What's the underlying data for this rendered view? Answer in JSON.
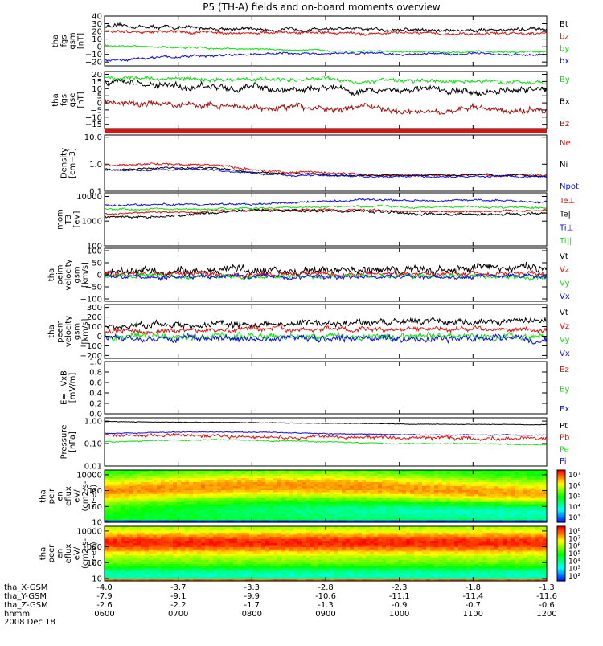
{
  "title": "P5 (TH-A) fields and on-board moments overview",
  "date_label": "2008 Dec 18",
  "colors": {
    "black": "#000000",
    "red": "#e01010",
    "green": "#10e010",
    "blue": "#1010e0",
    "darkred": "#a01010"
  },
  "chart_data": {
    "type": "line",
    "x_ticks": [
      {
        "hhmm": "0600",
        "x_gsm": "-4.0",
        "y_gsm": "-7.9",
        "z_gsm": "-2.6"
      },
      {
        "hhmm": "0700",
        "x_gsm": "-3.7",
        "y_gsm": "-9.1",
        "z_gsm": "-2.2"
      },
      {
        "hhmm": "0800",
        "x_gsm": "-3.3",
        "y_gsm": "-9.9",
        "z_gsm": "-1.7"
      },
      {
        "hhmm": "0900",
        "x_gsm": "-2.8",
        "y_gsm": "-10.6",
        "z_gsm": "-1.3"
      },
      {
        "hhmm": "1000",
        "x_gsm": "-2.3",
        "y_gsm": "-11.1",
        "z_gsm": "-0.9"
      },
      {
        "hhmm": "1100",
        "x_gsm": "-1.8",
        "y_gsm": "-11.4",
        "z_gsm": "-0.7"
      },
      {
        "hhmm": "1200",
        "x_gsm": "-1.3",
        "y_gsm": "-11.6",
        "z_gsm": "-0.6"
      }
    ],
    "row_labels": [
      "tha_X-GSM",
      "tha_Y-GSM",
      "tha_Z-GSM",
      "hhmm"
    ],
    "panels": [
      {
        "id": "fgs-gsm",
        "ylabel": [
          "tha",
          "fgs",
          "gsm",
          "[nT]"
        ],
        "ylim": [
          -25,
          40
        ],
        "scale": "linear",
        "ticks": [
          40,
          30,
          20,
          10,
          0,
          -10,
          -20
        ],
        "tick_labels": [
          "40",
          "30",
          "20",
          "10",
          "0",
          "−10",
          "−20"
        ],
        "series": [
          {
            "name": "Bt",
            "color": "#000000",
            "base": [
              27,
              26,
              25,
              24,
              23,
              22,
              24,
              22,
              23,
              21,
              22,
              23,
              22
            ],
            "noise": 3
          },
          {
            "name": "bz",
            "color": "#e01010",
            "base": [
              20,
              19,
              19,
              19,
              18,
              18,
              19,
              17,
              18,
              17,
              17,
              18,
              18
            ],
            "noise": 2.5
          },
          {
            "name": "by",
            "color": "#10e010",
            "base": [
              2,
              0,
              -1,
              -2,
              -3,
              -4,
              -5,
              -6,
              -7,
              -7,
              -6,
              -7,
              -7
            ],
            "noise": 1.5
          },
          {
            "name": "bx",
            "color": "#1010e0",
            "base": [
              -18,
              -15,
              -13,
              -12,
              -10,
              -9,
              -10,
              -8,
              -10,
              -9,
              -9,
              -10,
              -11
            ],
            "noise": 2
          }
        ]
      },
      {
        "id": "fgs-gse",
        "ylabel": [
          "tha",
          "fgs",
          "gse",
          "[nT]"
        ],
        "ylim": [
          -18,
          22
        ],
        "scale": "linear",
        "ticks": [
          20,
          15,
          10,
          5,
          0,
          -5,
          -10,
          -15
        ],
        "tick_labels": [
          "20",
          "15",
          "10",
          "5",
          "0",
          "−5",
          "−10",
          "−15"
        ],
        "series": [
          {
            "name": "By",
            "color": "#10e010",
            "base": [
              18,
              17,
              17,
              16,
              17,
              16,
              17,
              15,
              16,
              15,
              15,
              15,
              14
            ],
            "noise": 2
          },
          {
            "name": "Bx",
            "color": "#000000",
            "base": [
              15,
              13,
              12,
              11,
              10,
              9,
              11,
              8,
              10,
              9,
              8,
              9,
              9
            ],
            "noise": 3
          },
          {
            "name": "Bz",
            "color": "#a01010",
            "base": [
              0,
              0,
              -1,
              -2,
              -4,
              -3,
              -4,
              -3,
              -5,
              -5,
              -4,
              -5,
              -6
            ],
            "noise": 3
          }
        ]
      },
      {
        "id": "density",
        "ylabel": [
          "Density",
          "[cm−3]"
        ],
        "ylim": [
          0.1,
          12
        ],
        "scale": "log",
        "ticks": [
          10.0,
          1.0,
          0.1
        ],
        "tick_labels": [
          "10.0",
          "1.0",
          "0.1"
        ],
        "series": [
          {
            "name": "Ne",
            "color": "#e01010",
            "base": [
              0.9,
              1.0,
              1.0,
              0.9,
              0.6,
              0.5,
              0.5,
              0.4,
              0.4,
              0.4,
              0.4,
              0.4,
              0.4
            ],
            "noise": 0.06
          },
          {
            "name": "Ni",
            "color": "#000000",
            "base": [
              0.65,
              0.7,
              0.75,
              0.7,
              0.5,
              0.45,
              0.4,
              0.38,
              0.38,
              0.4,
              0.4,
              0.38,
              0.38
            ],
            "noise": 0.05
          },
          {
            "name": "Npot",
            "color": "#1010e0",
            "base": [
              0.6,
              0.6,
              0.65,
              0.6,
              0.45,
              0.4,
              0.38,
              0.35,
              0.35,
              0.35,
              0.36,
              0.35,
              0.35
            ],
            "noise": 0.05
          }
        ]
      },
      {
        "id": "mom-temp",
        "ylabel": [
          "mom",
          "T3",
          "[eV]"
        ],
        "ylim": [
          100,
          14000
        ],
        "scale": "log",
        "ticks": [
          10000,
          1000,
          100
        ],
        "tick_labels": [
          "10000",
          "1000",
          "100"
        ],
        "series": [
          {
            "name": "Te⊥",
            "color": "#e01010",
            "base": [
              2000,
              2200,
              2400,
              2600,
              2800,
              2900,
              2900,
              2800,
              2600,
              2500,
              2500,
              2600,
              2700
            ],
            "noise": 0.06
          },
          {
            "name": "Te||",
            "color": "#000000",
            "base": [
              1500,
              1400,
              1700,
              2300,
              2700,
              2800,
              2700,
              2400,
              2100,
              1900,
              1900,
              2000,
              2000
            ],
            "noise": 0.08
          },
          {
            "name": "Ti⊥",
            "color": "#1010e0",
            "base": [
              4500,
              4600,
              4700,
              4800,
              5000,
              5500,
              6500,
              7500,
              7000,
              6500,
              7000,
              6500,
              6000
            ],
            "noise": 0.06
          },
          {
            "name": "Ti||",
            "color": "#10e010",
            "base": [
              3000,
              3100,
              3200,
              3000,
              3200,
              3500,
              3800,
              4000,
              3800,
              3600,
              3800,
              3700,
              3600
            ],
            "noise": 0.06
          }
        ]
      },
      {
        "id": "peim-velocity",
        "ylabel": [
          "tha",
          "peim",
          "velocity",
          "gsm",
          "[km/s]"
        ],
        "ylim": [
          -110,
          110
        ],
        "scale": "linear",
        "ticks": [
          100,
          50,
          0,
          -50,
          -100
        ],
        "tick_labels": [
          "100",
          "50",
          "0",
          "−50",
          "−100"
        ],
        "series": [
          {
            "name": "Vt",
            "color": "#000000",
            "base": [
              10,
              12,
              14,
              16,
              18,
              20,
              22,
              24,
              22,
              22,
              25,
              25,
              24
            ],
            "noise": 22
          },
          {
            "name": "Vz",
            "color": "#e01010",
            "base": [
              5,
              5,
              4,
              4,
              3,
              4,
              5,
              4,
              3,
              3,
              4,
              4,
              4
            ],
            "noise": 12
          },
          {
            "name": "Vy",
            "color": "#10e010",
            "base": [
              -3,
              -4,
              -6,
              -8,
              -7,
              -8,
              -9,
              -8,
              -8,
              -7,
              -8,
              -8,
              -8
            ],
            "noise": 12
          },
          {
            "name": "Vx",
            "color": "#1010e0",
            "base": [
              -5,
              -6,
              -8,
              -7,
              -8,
              -9,
              -8,
              -8,
              -9,
              -8,
              -8,
              -7,
              -7
            ],
            "noise": 12
          }
        ]
      },
      {
        "id": "peem-velocity",
        "ylabel": [
          "tha",
          "peem",
          "velocity",
          "gsm",
          "[km/s]"
        ],
        "ylim": [
          -230,
          330
        ],
        "scale": "linear",
        "ticks": [
          300,
          200,
          100,
          0,
          -100,
          -200
        ],
        "tick_labels": [
          "300",
          "200",
          "100",
          "0",
          "−100",
          "−200"
        ],
        "series": [
          {
            "name": "Vt",
            "color": "#000000",
            "base": [
              110,
              110,
              115,
              120,
              125,
              130,
              135,
              140,
              150,
              150,
              155,
              160,
              160
            ],
            "noise": 45
          },
          {
            "name": "Vz",
            "color": "#e01010",
            "base": [
              60,
              60,
              62,
              64,
              66,
              68,
              70,
              72,
              72,
              74,
              74,
              76,
              76
            ],
            "noise": 35
          },
          {
            "name": "Vy",
            "color": "#10e010",
            "base": [
              0,
              0,
              0,
              0,
              0,
              0,
              0,
              0,
              0,
              0,
              0,
              0,
              0
            ],
            "noise": 45
          },
          {
            "name": "Vx",
            "color": "#1010e0",
            "base": [
              -20,
              -20,
              -22,
              -24,
              -25,
              -26,
              -28,
              -28,
              -30,
              -30,
              -30,
              -30,
              -30
            ],
            "noise": 45
          }
        ]
      },
      {
        "id": "efield",
        "ylabel": [
          "E=−VxB",
          "[mV/m]"
        ],
        "ylim": [
          0,
          1.0
        ],
        "scale": "linear",
        "ticks": [
          1.0,
          0.8,
          0.6,
          0.4,
          0.2,
          0.0
        ],
        "tick_labels": [
          "1.0",
          "0.8",
          "0.6",
          "0.4",
          "0.2",
          "0.0"
        ],
        "series": [
          {
            "name": "Ez",
            "color": "#e01010",
            "base": [],
            "noise": 0
          },
          {
            "name": "Ey",
            "color": "#10e010",
            "base": [],
            "noise": 0
          },
          {
            "name": "Ex",
            "color": "#1010e0",
            "base": [],
            "noise": 0
          }
        ]
      },
      {
        "id": "pressure",
        "ylabel": [
          "Pressure",
          "[nPa]"
        ],
        "ylim": [
          0.01,
          1.4
        ],
        "scale": "log",
        "ticks": [
          1.0,
          0.1,
          0.01
        ],
        "tick_labels": [
          "1.00",
          "0.10",
          "0.01"
        ],
        "series": [
          {
            "name": "Pt",
            "color": "#000000",
            "base": [
              0.95,
              0.92,
              0.9,
              0.88,
              0.85,
              0.82,
              0.8,
              0.78,
              0.75,
              0.72,
              0.72,
              0.7,
              0.7
            ],
            "noise": 0.02
          },
          {
            "name": "Pb",
            "color": "#e01010",
            "base": [
              0.25,
              0.24,
              0.23,
              0.22,
              0.2,
              0.19,
              0.2,
              0.18,
              0.18,
              0.17,
              0.16,
              0.17,
              0.18
            ],
            "noise": 0.12
          },
          {
            "name": "Pe",
            "color": "#10e010",
            "base": [
              0.12,
              0.13,
              0.14,
              0.15,
              0.14,
              0.13,
              0.12,
              0.11,
              0.1,
              0.1,
              0.1,
              0.09,
              0.09
            ],
            "noise": 0.04
          },
          {
            "name": "Pi",
            "color": "#1010e0",
            "base": [
              0.28,
              0.3,
              0.32,
              0.33,
              0.32,
              0.3,
              0.28,
              0.26,
              0.25,
              0.24,
              0.24,
              0.24,
              0.24
            ],
            "noise": 0.03
          }
        ]
      },
      {
        "id": "peir-spectrogram",
        "type": "heatmap",
        "ylabel": [
          "tha",
          "peir",
          "en",
          "eflux",
          "eV/",
          "(cm2-s-",
          "sr-eV)"
        ],
        "ylim": [
          10,
          20000
        ],
        "scale": "log",
        "ticks": [
          10000,
          1000,
          100,
          10
        ],
        "tick_labels": [
          "10000",
          "1000",
          "100",
          "10"
        ],
        "colorbar_ticks": [
          "10⁷",
          "10⁶",
          "10⁵",
          "10⁴",
          "10³"
        ]
      },
      {
        "id": "peer-spectrogram",
        "type": "heatmap",
        "ylabel": [
          "tha",
          "peer",
          "en",
          "eflux",
          "eV/",
          "(cm2-s-",
          "sr-eV)"
        ],
        "ylim": [
          7,
          20000
        ],
        "scale": "log",
        "ticks": [
          10000,
          1000,
          100,
          10
        ],
        "tick_labels": [
          "10000",
          "1000",
          "100",
          "10"
        ],
        "colorbar_ticks": [
          "10⁸",
          "10⁷",
          "10⁶",
          "10⁵",
          "10⁴",
          "10³",
          "10²"
        ]
      }
    ]
  }
}
